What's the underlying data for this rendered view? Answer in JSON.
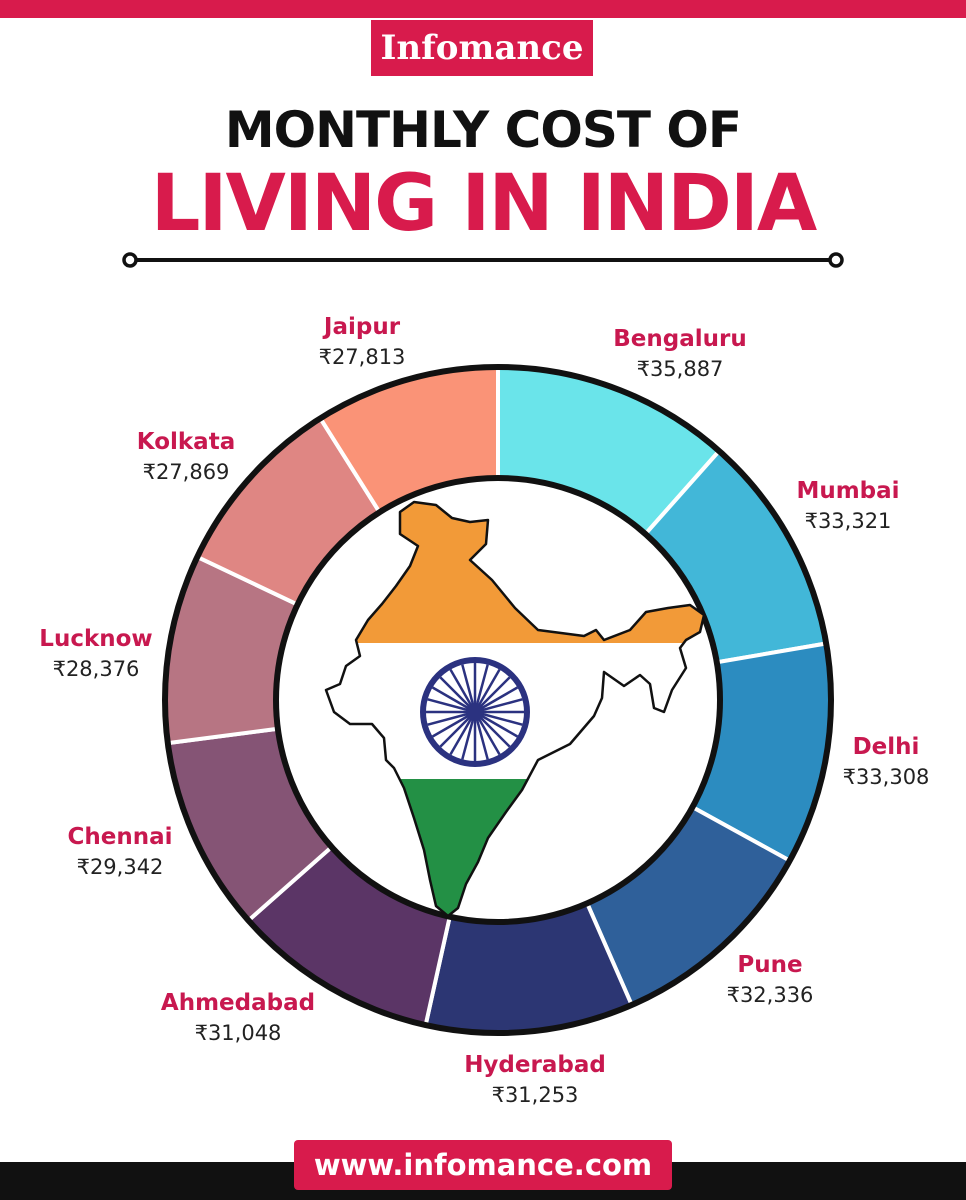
{
  "brand": "Infomance",
  "title_line1": "MONTHLY COST OF",
  "title_line2": "LIVING IN INDIA",
  "footer_url": "www.infomance.com",
  "colors": {
    "accent": "#d81b4c",
    "segments": [
      "#6ae4ea",
      "#42b7d8",
      "#2c8cc0",
      "#2f609a",
      "#2c3673",
      "#5b3566",
      "#855475",
      "#b77583",
      "#df8683",
      "#fa9377"
    ],
    "flag_saffron": "#f29a38",
    "flag_green": "#239045",
    "chakra": "#2b3280"
  },
  "icons": [
    "india-map-flag-icon",
    "ashoka-chakra-icon"
  ],
  "chart_data": {
    "type": "pie",
    "variant": "donut",
    "currency": "₹",
    "categories": [
      "Bengaluru",
      "Mumbai",
      "Delhi",
      "Pune",
      "Hyderabad",
      "Ahmedabad",
      "Chennai",
      "Lucknow",
      "Kolkata",
      "Jaipur"
    ],
    "values": [
      35887,
      33321,
      33308,
      32336,
      31253,
      31048,
      29342,
      28376,
      27869,
      27813
    ],
    "value_labels": [
      "₹35,887",
      "₹33,321",
      "₹33,308",
      "₹32,336",
      "₹31,253",
      "₹31,048",
      "₹29,342",
      "₹28,376",
      "₹27,869",
      "₹27,813"
    ]
  }
}
